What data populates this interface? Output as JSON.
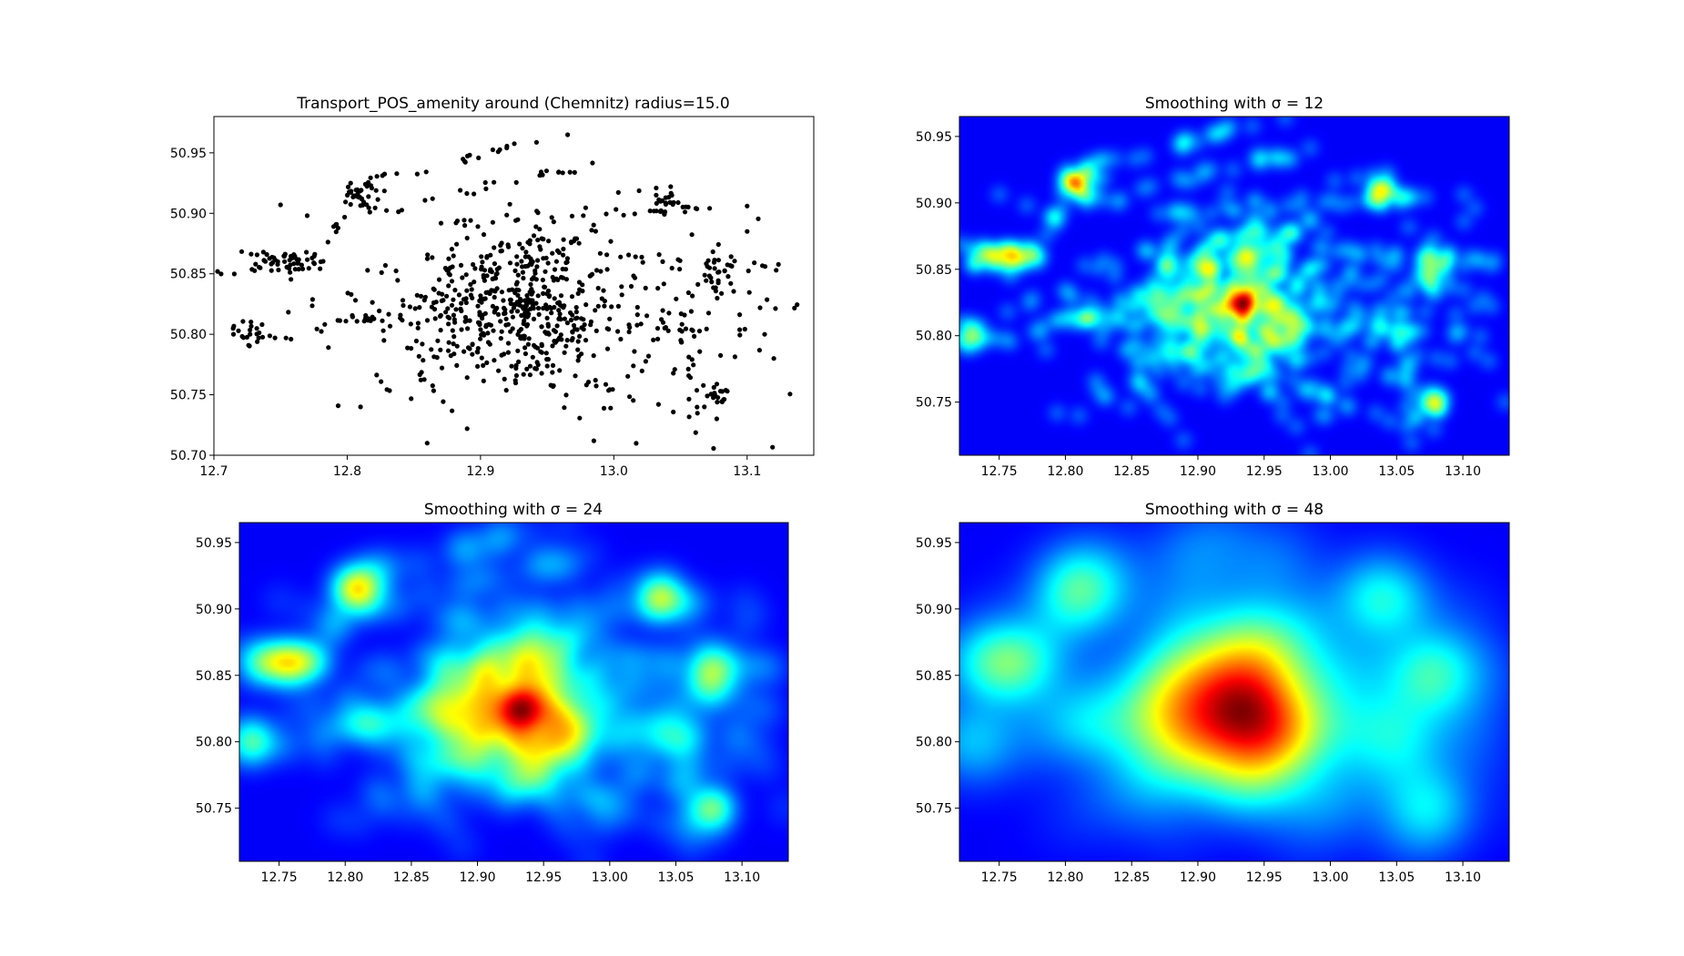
{
  "chart_data": [
    {
      "type": "scatter",
      "title": "Transport_POS_amenity around (Chemnitz) radius=15.0",
      "xlim": [
        12.7,
        13.15
      ],
      "ylim": [
        50.7,
        50.98
      ],
      "xticks": [
        "12.7",
        "12.8",
        "12.9",
        "13.0",
        "13.1"
      ],
      "yticks": [
        "50.70",
        "50.75",
        "50.80",
        "50.85",
        "50.90",
        "50.95"
      ],
      "marker_color": "#000000",
      "clusters": [
        {
          "x": 12.75,
          "y": 50.86,
          "sx": 0.015,
          "sy": 0.005,
          "n": 45
        },
        {
          "x": 12.81,
          "y": 50.915,
          "sx": 0.008,
          "sy": 0.008,
          "n": 35
        },
        {
          "x": 12.93,
          "y": 50.83,
          "sx": 0.035,
          "sy": 0.025,
          "n": 320
        },
        {
          "x": 12.94,
          "y": 50.79,
          "sx": 0.04,
          "sy": 0.02,
          "n": 80
        },
        {
          "x": 13.04,
          "y": 50.91,
          "sx": 0.01,
          "sy": 0.005,
          "n": 25
        },
        {
          "x": 13.075,
          "y": 50.85,
          "sx": 0.007,
          "sy": 0.01,
          "n": 30
        },
        {
          "x": 13.075,
          "y": 50.748,
          "sx": 0.007,
          "sy": 0.004,
          "n": 20
        },
        {
          "x": 12.73,
          "y": 50.8,
          "sx": 0.008,
          "sy": 0.006,
          "n": 20
        },
        {
          "x": 12.88,
          "y": 50.81,
          "sx": 0.07,
          "sy": 0.03,
          "n": 90
        },
        {
          "x": 13.05,
          "y": 50.8,
          "sx": 0.05,
          "sy": 0.05,
          "n": 80
        }
      ],
      "lines": [
        {
          "from": [
            12.7,
            50.85
          ],
          "to": [
            12.79,
            50.86
          ],
          "n": 14
        },
        {
          "from": [
            12.78,
            50.86
          ],
          "to": [
            12.81,
            50.93
          ],
          "n": 10
        },
        {
          "from": [
            12.81,
            50.925
          ],
          "to": [
            12.97,
            50.965
          ],
          "n": 20
        },
        {
          "from": [
            12.82,
            50.9
          ],
          "to": [
            13.0,
            50.945
          ],
          "n": 22
        },
        {
          "from": [
            12.85,
            50.89
          ],
          "to": [
            13.08,
            50.905
          ],
          "n": 25
        },
        {
          "from": [
            12.8,
            50.85
          ],
          "to": [
            12.95,
            50.88
          ],
          "n": 18
        },
        {
          "from": [
            12.9,
            50.83
          ],
          "to": [
            12.99,
            50.89
          ],
          "n": 20
        },
        {
          "from": [
            13.0,
            50.865
          ],
          "to": [
            13.13,
            50.855
          ],
          "n": 18
        },
        {
          "from": [
            12.72,
            50.79
          ],
          "to": [
            12.82,
            50.815
          ],
          "n": 14
        },
        {
          "from": [
            12.8,
            50.81
          ],
          "to": [
            12.95,
            50.82
          ],
          "n": 20
        },
        {
          "from": [
            12.96,
            50.81
          ],
          "to": [
            13.12,
            50.8
          ],
          "n": 18
        },
        {
          "from": [
            12.96,
            50.77
          ],
          "to": [
            13.06,
            50.73
          ],
          "n": 14
        },
        {
          "from": [
            12.84,
            50.78
          ],
          "to": [
            12.9,
            50.72
          ],
          "n": 8
        },
        {
          "from": [
            12.82,
            50.77
          ],
          "to": [
            12.83,
            50.75
          ],
          "n": 4
        },
        {
          "from": [
            13.1,
            50.83
          ],
          "to": [
            13.14,
            50.82
          ],
          "n": 6
        }
      ],
      "outliers": [
        [
          12.86,
          50.71
        ],
        [
          12.985,
          50.712
        ],
        [
          12.89,
          50.722
        ],
        [
          12.81,
          50.74
        ],
        [
          12.75,
          50.907
        ],
        [
          12.77,
          50.898
        ],
        [
          13.1,
          50.906
        ],
        [
          13.12,
          50.78
        ],
        [
          13.1,
          50.885
        ]
      ]
    },
    {
      "type": "heatmap",
      "title": "Smoothing with  σ = 12",
      "sigma": 12,
      "colormap": "jet",
      "extent": [
        12.72,
        13.135,
        50.71,
        50.965
      ],
      "xticks": [
        "12.75",
        "12.80",
        "12.85",
        "12.90",
        "12.95",
        "13.00",
        "13.05",
        "13.10"
      ],
      "yticks": [
        "50.75",
        "50.80",
        "50.85",
        "50.90",
        "50.95"
      ]
    },
    {
      "type": "heatmap",
      "title": "Smoothing with  σ = 24",
      "sigma": 24,
      "colormap": "jet",
      "extent": [
        12.72,
        13.135,
        50.71,
        50.965
      ],
      "xticks": [
        "12.75",
        "12.80",
        "12.85",
        "12.90",
        "12.95",
        "13.00",
        "13.05",
        "13.10"
      ],
      "yticks": [
        "50.75",
        "50.80",
        "50.85",
        "50.90",
        "50.95"
      ]
    },
    {
      "type": "heatmap",
      "title": "Smoothing with  σ = 48",
      "sigma": 48,
      "colormap": "jet",
      "extent": [
        12.72,
        13.135,
        50.71,
        50.965
      ],
      "xticks": [
        "12.75",
        "12.80",
        "12.85",
        "12.90",
        "12.95",
        "13.00",
        "13.05",
        "13.10"
      ],
      "yticks": [
        "50.75",
        "50.80",
        "50.85",
        "50.90",
        "50.95"
      ]
    }
  ]
}
